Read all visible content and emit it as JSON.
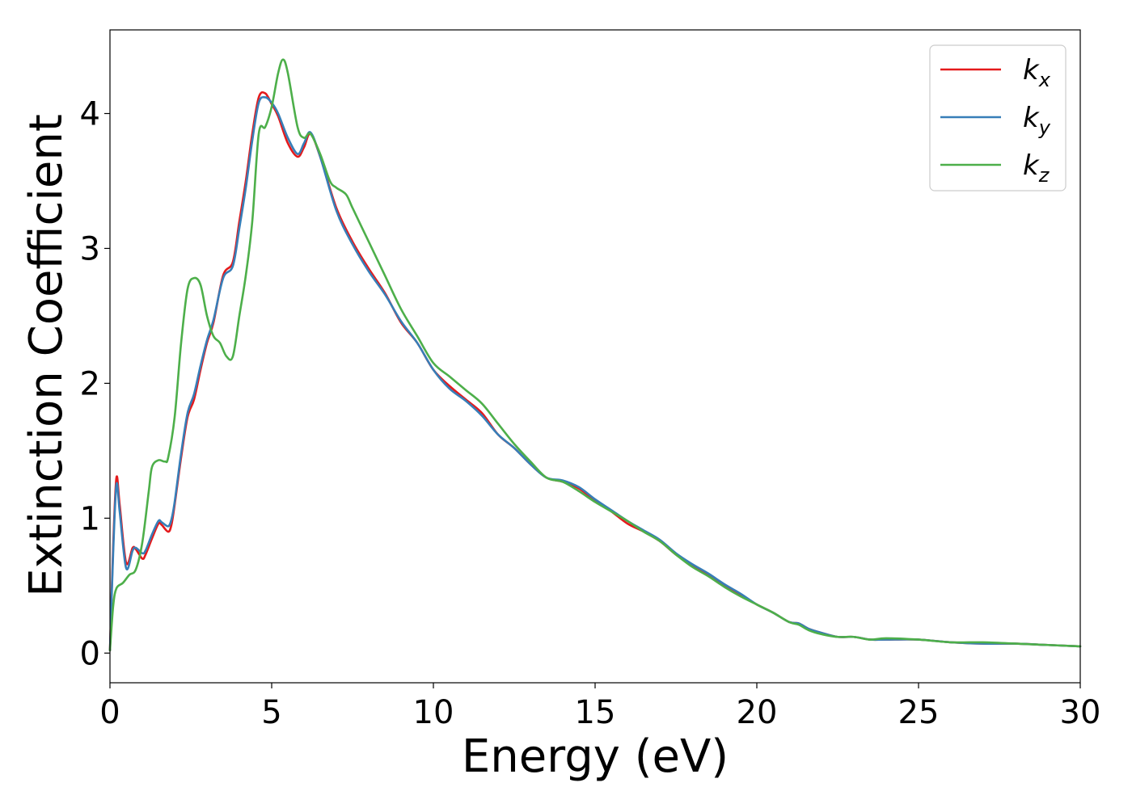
{
  "chart_data": {
    "type": "line",
    "title": "",
    "xlabel": "Energy (eV)",
    "ylabel": "Extinction Coefficient",
    "xlim": [
      0,
      30
    ],
    "ylim": [
      -0.22,
      4.62
    ],
    "xticks": [
      0,
      5,
      10,
      15,
      20,
      25,
      30
    ],
    "yticks": [
      0,
      1,
      2,
      3,
      4
    ],
    "xtick_labels": [
      "0",
      "5",
      "10",
      "15",
      "20",
      "25",
      "30"
    ],
    "ytick_labels": [
      "0",
      "1",
      "2",
      "3",
      "4"
    ],
    "grid": false,
    "legend_position": "top-right",
    "series": [
      {
        "name": "k_x",
        "legend_base": "k",
        "legend_sub": "x",
        "color": "#e41a1c",
        "x": [
          0,
          0.1,
          0.2,
          0.3,
          0.5,
          0.7,
          0.8,
          1.0,
          1.1,
          1.3,
          1.5,
          1.6,
          1.8,
          1.9,
          2.0,
          2.2,
          2.4,
          2.6,
          2.8,
          3.0,
          3.2,
          3.5,
          3.8,
          4.0,
          4.2,
          4.4,
          4.6,
          4.8,
          5.0,
          5.2,
          5.5,
          5.8,
          6.0,
          6.2,
          6.5,
          7.0,
          7.5,
          8.0,
          8.5,
          9.0,
          9.5,
          10,
          10.5,
          11,
          11.5,
          12,
          12.5,
          13,
          13.5,
          14,
          14.5,
          15,
          15.5,
          16,
          16.5,
          17,
          17.5,
          18,
          18.5,
          19,
          19.5,
          20,
          20.5,
          21,
          21.3,
          21.6,
          22,
          22.5,
          23,
          23.5,
          24,
          25,
          26,
          27,
          28,
          29,
          30
        ],
        "y": [
          0.02,
          0.8,
          1.3,
          1.1,
          0.67,
          0.78,
          0.77,
          0.7,
          0.73,
          0.85,
          0.96,
          0.95,
          0.9,
          0.95,
          1.1,
          1.45,
          1.75,
          1.88,
          2.1,
          2.3,
          2.45,
          2.8,
          2.9,
          3.2,
          3.5,
          3.85,
          4.12,
          4.15,
          4.07,
          3.98,
          3.78,
          3.68,
          3.75,
          3.85,
          3.68,
          3.3,
          3.05,
          2.85,
          2.67,
          2.45,
          2.3,
          2.1,
          1.98,
          1.88,
          1.78,
          1.62,
          1.52,
          1.4,
          1.3,
          1.27,
          1.22,
          1.13,
          1.05,
          0.96,
          0.9,
          0.83,
          0.73,
          0.65,
          0.58,
          0.5,
          0.43,
          0.36,
          0.3,
          0.23,
          0.22,
          0.18,
          0.15,
          0.12,
          0.12,
          0.1,
          0.1,
          0.1,
          0.08,
          0.07,
          0.07,
          0.06,
          0.05
        ]
      },
      {
        "name": "k_y",
        "legend_base": "k",
        "legend_sub": "y",
        "color": "#377eb8",
        "x": [
          0,
          0.1,
          0.2,
          0.3,
          0.5,
          0.7,
          0.8,
          1.0,
          1.1,
          1.3,
          1.5,
          1.6,
          1.8,
          1.9,
          2.0,
          2.2,
          2.4,
          2.6,
          2.8,
          3.0,
          3.2,
          3.5,
          3.8,
          4.0,
          4.2,
          4.4,
          4.6,
          4.8,
          5.0,
          5.2,
          5.5,
          5.8,
          6.0,
          6.2,
          6.5,
          7.0,
          7.5,
          8.0,
          8.5,
          9.0,
          9.5,
          10,
          10.5,
          11,
          11.5,
          12,
          12.5,
          13,
          13.5,
          14,
          14.5,
          15,
          15.5,
          16,
          16.5,
          17,
          17.5,
          18,
          18.5,
          19,
          19.5,
          20,
          20.5,
          21,
          21.3,
          21.6,
          22,
          22.5,
          23,
          23.5,
          24,
          25,
          26,
          27,
          28,
          29,
          30
        ],
        "y": [
          0.02,
          0.75,
          1.25,
          1.05,
          0.63,
          0.76,
          0.78,
          0.74,
          0.76,
          0.88,
          0.98,
          0.97,
          0.94,
          0.99,
          1.12,
          1.48,
          1.78,
          1.92,
          2.13,
          2.32,
          2.47,
          2.78,
          2.87,
          3.15,
          3.45,
          3.8,
          4.08,
          4.12,
          4.08,
          4.0,
          3.82,
          3.7,
          3.78,
          3.86,
          3.68,
          3.28,
          3.03,
          2.83,
          2.66,
          2.46,
          2.3,
          2.1,
          1.96,
          1.87,
          1.76,
          1.62,
          1.52,
          1.4,
          1.3,
          1.28,
          1.23,
          1.14,
          1.06,
          0.98,
          0.91,
          0.84,
          0.74,
          0.66,
          0.59,
          0.51,
          0.44,
          0.36,
          0.3,
          0.23,
          0.22,
          0.18,
          0.15,
          0.12,
          0.12,
          0.1,
          0.1,
          0.1,
          0.08,
          0.07,
          0.07,
          0.06,
          0.05
        ]
      },
      {
        "name": "k_z",
        "legend_base": "k",
        "legend_sub": "z",
        "color": "#4daf4a",
        "x": [
          0,
          0.1,
          0.2,
          0.4,
          0.6,
          0.8,
          1.0,
          1.2,
          1.3,
          1.5,
          1.7,
          1.8,
          2.0,
          2.2,
          2.4,
          2.6,
          2.8,
          3.0,
          3.2,
          3.4,
          3.6,
          3.8,
          4.0,
          4.2,
          4.4,
          4.6,
          4.8,
          5.0,
          5.2,
          5.35,
          5.5,
          5.8,
          6.0,
          6.2,
          6.5,
          6.8,
          7.0,
          7.3,
          7.5,
          8.0,
          8.5,
          9.0,
          9.5,
          10,
          10.5,
          11,
          11.5,
          12,
          12.5,
          13,
          13.5,
          14,
          14.5,
          15,
          15.5,
          16,
          16.5,
          17,
          17.5,
          18,
          18.5,
          19,
          19.5,
          20,
          20.5,
          21,
          21.3,
          21.6,
          22,
          22.5,
          23,
          23.5,
          24,
          25,
          26,
          27,
          28,
          29,
          30
        ],
        "y": [
          0.02,
          0.35,
          0.48,
          0.52,
          0.58,
          0.62,
          0.82,
          1.2,
          1.38,
          1.43,
          1.42,
          1.45,
          1.75,
          2.3,
          2.7,
          2.78,
          2.73,
          2.5,
          2.35,
          2.3,
          2.2,
          2.2,
          2.5,
          2.8,
          3.2,
          3.85,
          3.9,
          4.05,
          4.3,
          4.4,
          4.3,
          3.9,
          3.82,
          3.85,
          3.7,
          3.5,
          3.45,
          3.4,
          3.3,
          3.05,
          2.8,
          2.55,
          2.35,
          2.15,
          2.05,
          1.95,
          1.85,
          1.7,
          1.55,
          1.42,
          1.3,
          1.27,
          1.2,
          1.12,
          1.05,
          0.98,
          0.9,
          0.83,
          0.73,
          0.64,
          0.57,
          0.49,
          0.42,
          0.36,
          0.3,
          0.23,
          0.21,
          0.17,
          0.14,
          0.12,
          0.12,
          0.1,
          0.11,
          0.1,
          0.08,
          0.08,
          0.07,
          0.06,
          0.05
        ]
      }
    ]
  }
}
